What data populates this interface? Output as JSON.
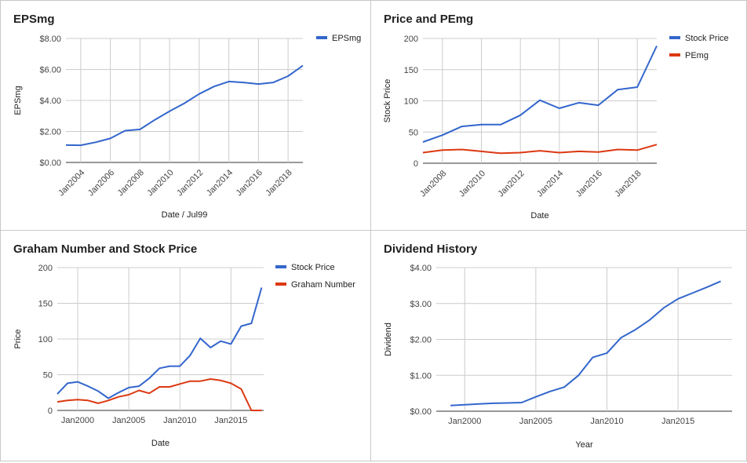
{
  "chart_data": [
    {
      "type": "line",
      "title": "EPSmg",
      "xlabel": "Date / Jul99",
      "ylabel": "EPSmg",
      "xlim": [
        2003.0,
        2019.0
      ],
      "ylim": [
        0,
        8
      ],
      "yticks": [
        {
          "v": 0,
          "label": "$0.00"
        },
        {
          "v": 2,
          "label": "$2.00"
        },
        {
          "v": 4,
          "label": "$4.00"
        },
        {
          "v": 6,
          "label": "$6.00"
        },
        {
          "v": 8,
          "label": "$8.00"
        }
      ],
      "xticks": [
        {
          "v": 2004,
          "label": "Jan2004"
        },
        {
          "v": 2006,
          "label": "Jan2006"
        },
        {
          "v": 2008,
          "label": "Jan2008"
        },
        {
          "v": 2010,
          "label": "Jan2010"
        },
        {
          "v": 2012,
          "label": "Jan2012"
        },
        {
          "v": 2014,
          "label": "Jan2014"
        },
        {
          "v": 2016,
          "label": "Jan2016"
        },
        {
          "v": 2018,
          "label": "Jan2018"
        }
      ],
      "x_tick_style": "rotated",
      "grid": true,
      "legend_position": "right",
      "series": [
        {
          "name": "EPSmg",
          "color": "#3366cc",
          "x": [
            2003,
            2004,
            2005,
            2006,
            2007,
            2008,
            2009,
            2010,
            2011,
            2012,
            2013,
            2014,
            2015,
            2016,
            2017,
            2018,
            2019
          ],
          "y": [
            1.12,
            1.11,
            1.3,
            1.55,
            2.05,
            2.13,
            2.75,
            3.3,
            3.82,
            4.42,
            4.9,
            5.22,
            5.16,
            5.06,
            5.16,
            5.57,
            6.25
          ]
        }
      ]
    },
    {
      "type": "line",
      "title": "Price and PEmg",
      "xlabel": "Date",
      "ylabel": "Stock Price",
      "xlim": [
        2007.0,
        2019.0
      ],
      "ylim": [
        0,
        200
      ],
      "yticks": [
        {
          "v": 0,
          "label": "0"
        },
        {
          "v": 50,
          "label": "50"
        },
        {
          "v": 100,
          "label": "100"
        },
        {
          "v": 150,
          "label": "150"
        },
        {
          "v": 200,
          "label": "200"
        }
      ],
      "xticks": [
        {
          "v": 2008,
          "label": "Jan2008"
        },
        {
          "v": 2010,
          "label": "Jan2010"
        },
        {
          "v": 2012,
          "label": "Jan2012"
        },
        {
          "v": 2014,
          "label": "Jan2014"
        },
        {
          "v": 2016,
          "label": "Jan2016"
        },
        {
          "v": 2018,
          "label": "Jan2018"
        }
      ],
      "x_tick_style": "rotated",
      "grid": true,
      "legend_position": "right",
      "series": [
        {
          "name": "Stock Price",
          "color": "#3366cc",
          "x": [
            2007,
            2008,
            2009,
            2010,
            2011,
            2012,
            2013,
            2014,
            2015,
            2016,
            2017,
            2018,
            2019
          ],
          "y": [
            34,
            45,
            59,
            62,
            62,
            77,
            101,
            88,
            97,
            93,
            118,
            122,
            188
          ]
        },
        {
          "name": "PEmg",
          "color": "#dc3912",
          "x": [
            2007,
            2008,
            2009,
            2010,
            2011,
            2012,
            2013,
            2014,
            2015,
            2016,
            2017,
            2018,
            2019
          ],
          "y": [
            17,
            21,
            22,
            19,
            16,
            17,
            20,
            17,
            19,
            18,
            22,
            21,
            30
          ]
        }
      ]
    },
    {
      "type": "line",
      "title": "Graham Number and Stock Price",
      "xlabel": "Date",
      "ylabel": "Price",
      "xlim": [
        1998.0,
        2018.2
      ],
      "ylim": [
        0,
        200
      ],
      "yticks": [
        {
          "v": 0,
          "label": "0"
        },
        {
          "v": 50,
          "label": "50"
        },
        {
          "v": 100,
          "label": "100"
        },
        {
          "v": 150,
          "label": "150"
        },
        {
          "v": 200,
          "label": "200"
        }
      ],
      "xticks": [
        {
          "v": 2000,
          "label": "Jan2000"
        },
        {
          "v": 2005,
          "label": "Jan2005"
        },
        {
          "v": 2010,
          "label": "Jan2010"
        },
        {
          "v": 2015,
          "label": "Jan2015"
        }
      ],
      "x_tick_style": "horizontal",
      "grid": true,
      "legend_position": "right",
      "series": [
        {
          "name": "Stock Price",
          "color": "#3366cc",
          "x": [
            1998,
            1999,
            2000,
            2001,
            2002,
            2003,
            2004,
            2005,
            2006,
            2007,
            2008,
            2009,
            2010,
            2011,
            2012,
            2013,
            2014,
            2015,
            2016,
            2017,
            2018
          ],
          "y": [
            23,
            38,
            40,
            34,
            27,
            17,
            25,
            32,
            34,
            45,
            59,
            62,
            62,
            77,
            101,
            88,
            97,
            93,
            118,
            122,
            172
          ]
        },
        {
          "name": "Graham Number",
          "color": "#dc3912",
          "x": [
            1998,
            1999,
            2000,
            2001,
            2002,
            2003,
            2004,
            2005,
            2006,
            2007,
            2008,
            2009,
            2010,
            2011,
            2012,
            2013,
            2014,
            2015,
            2016,
            2017,
            2018
          ],
          "y": [
            12,
            14,
            15,
            14,
            10,
            14,
            19,
            22,
            28,
            24,
            33,
            33,
            37,
            41,
            41,
            44,
            42,
            38,
            30,
            0,
            0
          ]
        }
      ]
    },
    {
      "type": "line",
      "title": "Dividend History",
      "xlabel": "Year",
      "ylabel": "Dividend",
      "xlim": [
        1998.0,
        2018.8
      ],
      "ylim": [
        0,
        4
      ],
      "yticks": [
        {
          "v": 0,
          "label": "$0.00"
        },
        {
          "v": 1,
          "label": "$1.00"
        },
        {
          "v": 2,
          "label": "$2.00"
        },
        {
          "v": 3,
          "label": "$3.00"
        },
        {
          "v": 4,
          "label": "$4.00"
        }
      ],
      "xticks": [
        {
          "v": 2000,
          "label": "Jan2000"
        },
        {
          "v": 2005,
          "label": "Jan2005"
        },
        {
          "v": 2010,
          "label": "Jan2010"
        },
        {
          "v": 2015,
          "label": "Jan2015"
        }
      ],
      "x_tick_style": "horizontal",
      "grid": true,
      "legend_position": "none",
      "series": [
        {
          "name": "",
          "color": "#3366cc",
          "x": [
            1999,
            2000,
            2001,
            2002,
            2003,
            2004,
            2005,
            2006,
            2007,
            2008,
            2009,
            2010,
            2011,
            2012,
            2013,
            2014,
            2015,
            2016,
            2017,
            2018
          ],
          "y": [
            0.16,
            0.18,
            0.2,
            0.22,
            0.23,
            0.24,
            0.4,
            0.55,
            0.67,
            1.0,
            1.5,
            1.62,
            2.05,
            2.27,
            2.54,
            2.88,
            3.13,
            3.29,
            3.45,
            3.62
          ]
        }
      ]
    }
  ]
}
